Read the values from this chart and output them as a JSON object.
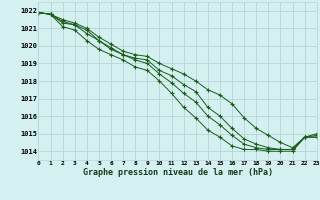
{
  "title": "Graphe pression niveau de la mer (hPa)",
  "bg_color": "#d4f0f0",
  "grid_color": "#b8d4d4",
  "line_color": "#1a5c1a",
  "xmin": 0,
  "xmax": 23,
  "ymin": 1013.5,
  "ymax": 1022.5,
  "yticks": [
    1014,
    1015,
    1016,
    1017,
    1018,
    1019,
    1020,
    1021,
    1022
  ],
  "xticks": [
    0,
    1,
    2,
    3,
    4,
    5,
    6,
    7,
    8,
    9,
    10,
    11,
    12,
    13,
    14,
    15,
    16,
    17,
    18,
    19,
    20,
    21,
    22,
    23
  ],
  "series": [
    [
      1021.9,
      1021.8,
      1021.3,
      1021.2,
      1020.9,
      1020.3,
      1019.8,
      1019.5,
      1019.3,
      1019.2,
      1018.6,
      1018.3,
      1017.8,
      1017.4,
      1016.5,
      1016.0,
      1015.3,
      1014.7,
      1014.4,
      1014.2,
      1014.1,
      1014.1,
      1014.8,
      1014.8
    ],
    [
      1021.9,
      1021.8,
      1021.5,
      1021.3,
      1021.0,
      1020.5,
      1020.1,
      1019.7,
      1019.5,
      1019.4,
      1019.0,
      1018.7,
      1018.4,
      1018.0,
      1017.5,
      1017.2,
      1016.7,
      1015.9,
      1015.3,
      1014.9,
      1014.5,
      1014.2,
      1014.8,
      1014.8
    ],
    [
      1021.9,
      1021.8,
      1021.4,
      1021.2,
      1020.7,
      1020.3,
      1019.9,
      1019.5,
      1019.2,
      1019.0,
      1018.4,
      1017.9,
      1017.3,
      1016.8,
      1016.0,
      1015.5,
      1014.9,
      1014.4,
      1014.2,
      1014.1,
      1014.1,
      1014.1,
      1014.8,
      1014.9
    ],
    [
      1021.9,
      1021.8,
      1021.1,
      1020.9,
      1020.3,
      1019.8,
      1019.5,
      1019.2,
      1018.8,
      1018.6,
      1018.0,
      1017.3,
      1016.5,
      1015.9,
      1015.2,
      1014.8,
      1014.3,
      1014.1,
      1014.1,
      1014.0,
      1014.0,
      1014.0,
      1014.8,
      1015.0
    ]
  ]
}
